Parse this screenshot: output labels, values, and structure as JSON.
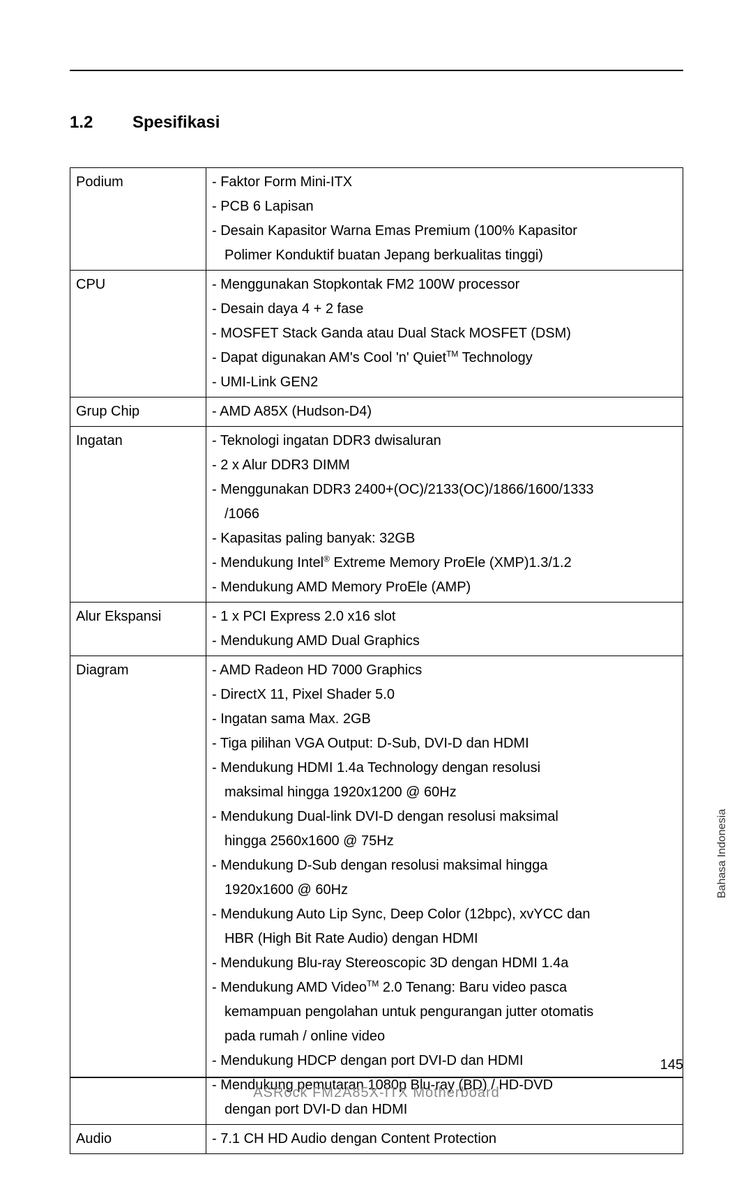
{
  "section": {
    "number": "1.2",
    "title": "Spesifikasi"
  },
  "table": {
    "rows": [
      {
        "label": "Podium",
        "lines": [
          {
            "text": "- Faktor Form Mini-ITX"
          },
          {
            "text": "- PCB 6 Lapisan"
          },
          {
            "text": "- Desain Kapasitor Warna Emas Premium (100% Kapasitor"
          },
          {
            "text": "Polimer Konduktif buatan Jepang berkualitas tinggi)",
            "indent": true
          }
        ]
      },
      {
        "label": "CPU",
        "lines": [
          {
            "text": "- Menggunakan Stopkontak FM2 100W processor"
          },
          {
            "text": "- Desain daya 4 + 2 fase"
          },
          {
            "text": "- MOSFET Stack Ganda atau Dual Stack MOSFET (DSM)"
          },
          {
            "html": "- Dapat digunakan AM's Cool 'n' Quiet<sup class=\"tm\">TM</sup> Technology"
          },
          {
            "text": "- UMI-Link GEN2"
          }
        ]
      },
      {
        "label": "Grup Chip",
        "lines": [
          {
            "text": "- AMD A85X (Hudson-D4)"
          }
        ]
      },
      {
        "label": "Ingatan",
        "lines": [
          {
            "text": "- Teknologi ingatan DDR3 dwisaluran"
          },
          {
            "text": "- 2 x Alur DDR3 DIMM"
          },
          {
            "text": "- Menggunakan DDR3 2400+(OC)/2133(OC)/1866/1600/1333"
          },
          {
            "text": "/1066",
            "indent": true
          },
          {
            "text": "- Kapasitas paling banyak: 32GB"
          },
          {
            "html": "- Mendukung Intel<sup class=\"reg\">®</sup> Extreme Memory ProEle (XMP)1.3/1.2"
          },
          {
            "text": "- Mendukung AMD Memory ProEle (AMP)"
          }
        ]
      },
      {
        "label": "Alur Ekspansi",
        "lines": [
          {
            "text": "- 1 x PCI Express 2.0 x16 slot"
          },
          {
            "text": "- Mendukung AMD Dual Graphics"
          }
        ]
      },
      {
        "label": "Diagram",
        "lines": [
          {
            "text": "- AMD Radeon HD 7000 Graphics"
          },
          {
            "text": "- DirectX 11, Pixel Shader 5.0"
          },
          {
            "text": "- Ingatan sama Max. 2GB"
          },
          {
            "text": "- Tiga pilihan VGA Output: D-Sub, DVI-D dan HDMI"
          },
          {
            "text": "- Mendukung HDMI 1.4a Technology dengan resolusi"
          },
          {
            "text": "maksimal hingga 1920x1200 @ 60Hz",
            "indent": true
          },
          {
            "text": "- Mendukung Dual-link DVI-D dengan resolusi maksimal"
          },
          {
            "text": "hingga 2560x1600 @ 75Hz",
            "indent": true
          },
          {
            "text": "- Mendukung D-Sub dengan resolusi maksimal hingga"
          },
          {
            "text": "1920x1600 @ 60Hz",
            "indent": true
          },
          {
            "text": "- Mendukung Auto Lip Sync, Deep Color (12bpc), xvYCC dan"
          },
          {
            "text": "HBR (High Bit Rate Audio) dengan HDMI",
            "indent": true
          },
          {
            "text": "- Mendukung Blu-ray Stereoscopic 3D dengan HDMI 1.4a"
          },
          {
            "html": "- Mendukung AMD Video<sup class=\"tm\">TM</sup> 2.0 Tenang: Baru video pasca"
          },
          {
            "text": "kemampuan pengolahan untuk pengurangan jutter otomatis",
            "indent": true
          },
          {
            "text": "pada rumah / online video",
            "indent": true
          },
          {
            "text": "- Mendukung HDCP dengan port DVI-D dan HDMI"
          },
          {
            "text": "- Mendukung pemutaran 1080p Blu-ray (BD) / HD-DVD"
          },
          {
            "text": "dengan port DVI-D dan HDMI",
            "indent": true
          }
        ]
      },
      {
        "label": "Audio",
        "lines": [
          {
            "text": "- 7.1 CH HD Audio dengan Content Protection"
          }
        ]
      }
    ]
  },
  "footer": {
    "product": "ASRock  FM2A85X-ITX  Motherboard",
    "page": "145"
  },
  "sideLabel": "Bahasa Indonesia"
}
